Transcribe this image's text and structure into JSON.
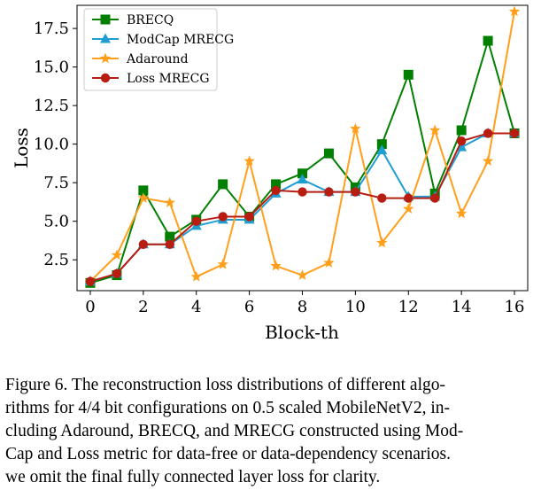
{
  "chart_data": {
    "type": "line",
    "xlabel": "Block-th",
    "ylabel": "Loss",
    "xlim": [
      -0.5,
      16.5
    ],
    "ylim": [
      0.5,
      19.0
    ],
    "xticks": [
      "0",
      "2",
      "4",
      "6",
      "8",
      "10",
      "12",
      "14",
      "16"
    ],
    "yticks": [
      "2.5",
      "5.0",
      "7.5",
      "10.0",
      "12.5",
      "15.0",
      "17.5"
    ],
    "grid": false,
    "legend_position": "top-left",
    "x": [
      0,
      1,
      2,
      3,
      4,
      5,
      6,
      7,
      8,
      9,
      10,
      11,
      12,
      13,
      14,
      15,
      16
    ],
    "series": [
      {
        "name": "BRECQ",
        "color": "#007f00",
        "marker": "square",
        "values": [
          1.0,
          1.5,
          7.0,
          4.0,
          5.1,
          7.4,
          5.3,
          7.4,
          8.1,
          9.4,
          7.2,
          10.0,
          14.5,
          6.8,
          10.9,
          16.7,
          10.7
        ]
      },
      {
        "name": "ModCap MRECG",
        "color": "#1f9ed1",
        "marker": "triangle",
        "values": [
          1.1,
          1.6,
          3.5,
          3.5,
          4.7,
          5.1,
          5.1,
          6.8,
          7.7,
          6.9,
          6.9,
          9.6,
          6.6,
          6.6,
          9.8,
          10.7,
          10.7
        ]
      },
      {
        "name": "Adaround",
        "color": "#ff9f1c",
        "marker": "star",
        "values": [
          1.1,
          2.8,
          6.5,
          6.2,
          1.4,
          2.2,
          8.9,
          2.1,
          1.5,
          2.3,
          11.0,
          3.6,
          5.8,
          10.9,
          5.5,
          8.9,
          18.6
        ]
      },
      {
        "name": "Loss MRECG",
        "color": "#b81d12",
        "marker": "circle",
        "values": [
          1.1,
          1.6,
          3.5,
          3.5,
          5.0,
          5.3,
          5.3,
          7.0,
          6.9,
          6.9,
          6.9,
          6.5,
          6.5,
          6.5,
          10.2,
          10.7,
          10.7
        ]
      }
    ]
  },
  "caption": {
    "lines": [
      "Figure 6.  The reconstruction loss distributions of different algo-",
      "rithms for 4/4 bit configurations on 0.5 scaled MobileNetV2, in-",
      "cluding Adaround, BRECQ, and MRECG constructed using Mod-",
      "Cap and Loss metric for data-free or data-dependency scenarios.",
      "we omit the final fully connected layer loss for clarity."
    ]
  }
}
